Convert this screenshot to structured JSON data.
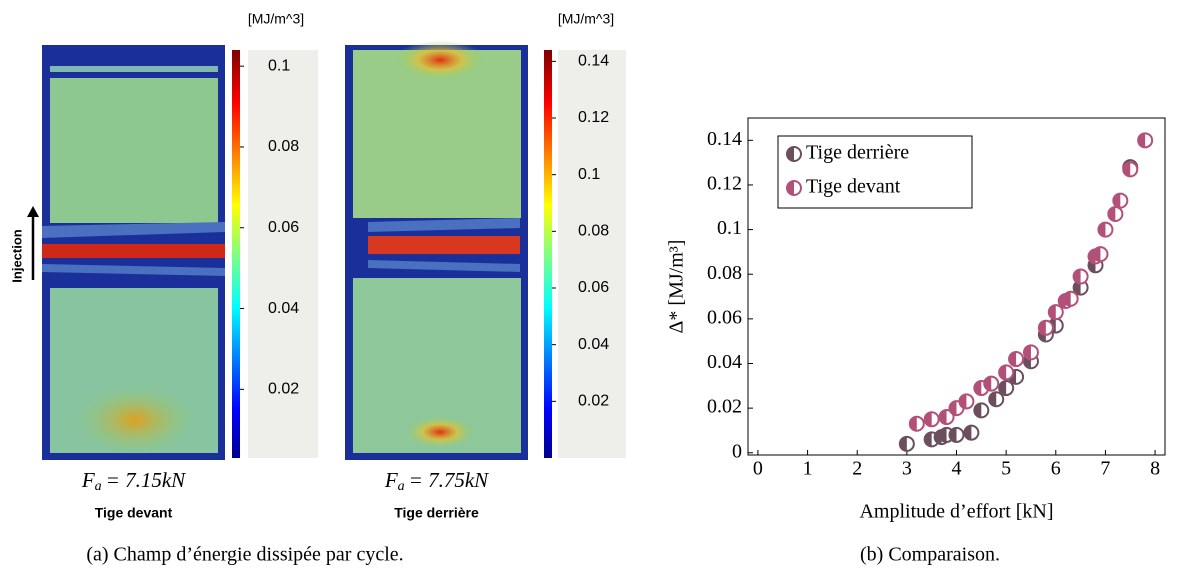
{
  "chart_data": [
    {
      "type": "heatmap",
      "unit_label": "[MJ/m^3]",
      "clim": [
        0.003,
        0.104
      ],
      "colorbar_ticks": [
        0.02,
        0.04,
        0.06,
        0.08,
        0.1
      ],
      "load_symbol": "F",
      "load_subscript": "a",
      "load_value": "= 7.15kN",
      "subtitle": "Tige devant"
    },
    {
      "type": "heatmap",
      "unit_label": "[MJ/m^3]",
      "clim": [
        0,
        0.144
      ],
      "colorbar_ticks": [
        0.02,
        0.04,
        0.06,
        0.08,
        0.1,
        0.12,
        0.14
      ],
      "load_symbol": "F",
      "load_subscript": "a",
      "load_value": "= 7.75kN",
      "subtitle": "Tige derrière"
    },
    {
      "type": "scatter",
      "x_label": "Amplitude d’effort [kN]",
      "y_label": "Δ* [MJ/m³]",
      "xlim": [
        -0.2,
        8.2
      ],
      "ylim": [
        -0.001,
        0.15
      ],
      "xticks": [
        0,
        1,
        2,
        3,
        4,
        5,
        6,
        7,
        8
      ],
      "yticks": [
        0,
        0.02,
        0.04,
        0.06,
        0.08,
        0.1,
        0.12,
        0.14
      ],
      "legend": "upper left",
      "series": [
        {
          "name": "Tige derrière",
          "color": "#6b4f5e",
          "x": [
            3.0,
            3.5,
            3.7,
            3.8,
            4.0,
            4.3,
            4.5,
            4.8,
            5.0,
            5.2,
            5.5,
            5.8,
            6.0,
            6.5,
            6.8,
            7.5
          ],
          "values": [
            0.004,
            0.006,
            0.007,
            0.008,
            0.008,
            0.009,
            0.019,
            0.024,
            0.029,
            0.034,
            0.041,
            0.053,
            0.057,
            0.074,
            0.084,
            0.128
          ]
        },
        {
          "name": "Tige devant",
          "color": "#b3507a",
          "x": [
            3.2,
            3.5,
            3.8,
            4.0,
            4.2,
            4.5,
            4.7,
            5.0,
            5.2,
            5.5,
            5.8,
            6.0,
            6.2,
            6.3,
            6.5,
            6.8,
            6.9,
            7.0,
            7.2,
            7.3,
            7.5,
            7.8
          ],
          "values": [
            0.013,
            0.015,
            0.016,
            0.02,
            0.023,
            0.029,
            0.031,
            0.036,
            0.042,
            0.045,
            0.056,
            0.063,
            0.068,
            0.069,
            0.079,
            0.088,
            0.089,
            0.1,
            0.107,
            0.113,
            0.127,
            0.14
          ]
        }
      ]
    }
  ],
  "injection_label": "Injection",
  "captions": {
    "a": "(a) Champ d’énergie dissipée par cycle.",
    "b": "(b) Comparaison."
  }
}
